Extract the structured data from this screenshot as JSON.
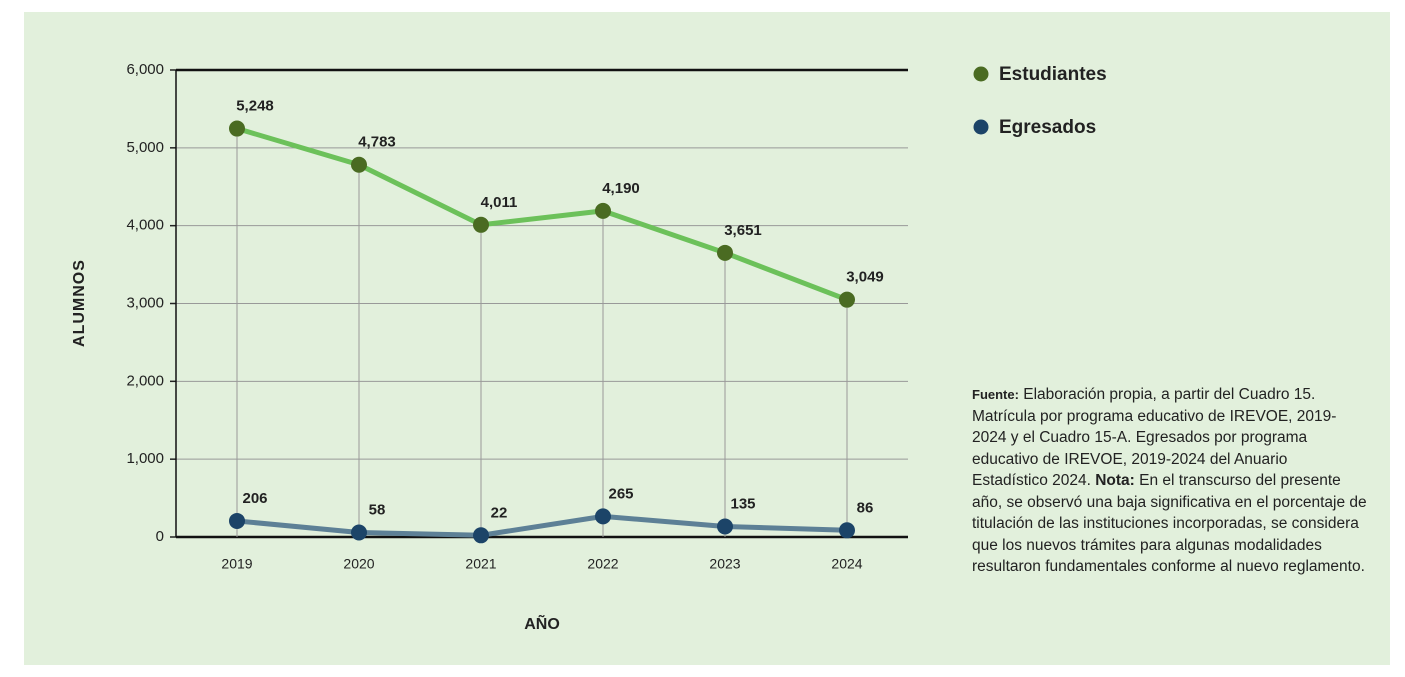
{
  "chart_data": {
    "type": "line",
    "y_label": "ALUMNOS",
    "x_label": "AÑO",
    "categories": [
      "2019",
      "2020",
      "2021",
      "2022",
      "2023",
      "2024"
    ],
    "series": [
      {
        "name": "Estudiantes",
        "color": "#6cc15a",
        "marker_color": "#4a6b22",
        "values": [
          5248,
          4783,
          4011,
          4190,
          3651,
          3049
        ],
        "value_labels": [
          "5,248",
          "4,783",
          "4,011",
          "4,190",
          "3,651",
          "3,049"
        ]
      },
      {
        "name": "Egresados",
        "color": "#5d8096",
        "marker_color": "#1c4468",
        "values": [
          206,
          58,
          22,
          265,
          135,
          86
        ]
      }
    ],
    "ylim": [
      0,
      6000
    ],
    "yticks": [
      0,
      {
        "value": 1000,
        "label": "1,000"
      },
      {
        "value": 2000,
        "label": "2,000"
      },
      {
        "value": 3000,
        "label": "3,000"
      },
      {
        "value": 4000,
        "label": "4,000"
      },
      {
        "value": 5000,
        "label": "5,000"
      },
      {
        "value": 6000,
        "label": "6,000"
      }
    ],
    "grid": true,
    "drop_lines": true,
    "source_label": "Fuente:",
    "source": "Elaboración propia, a partir del Cuadro 15. Matrícula por programa educativo de IREVOE, 2019-2024 y el Cuadro 15-A. Egresados por programa educativo de IREVOE, 2019-2024 del Anuario Estadístico 2024.",
    "note_label": "Nota:",
    "note": "En el transcurso del presente año, se observó una baja significativa en el porcentaje de titulación de las instituciones incorporadas, se considera que los nuevos trámites para algunas modalidades resultaron fundamentales conforme al nuevo reglamento."
  }
}
